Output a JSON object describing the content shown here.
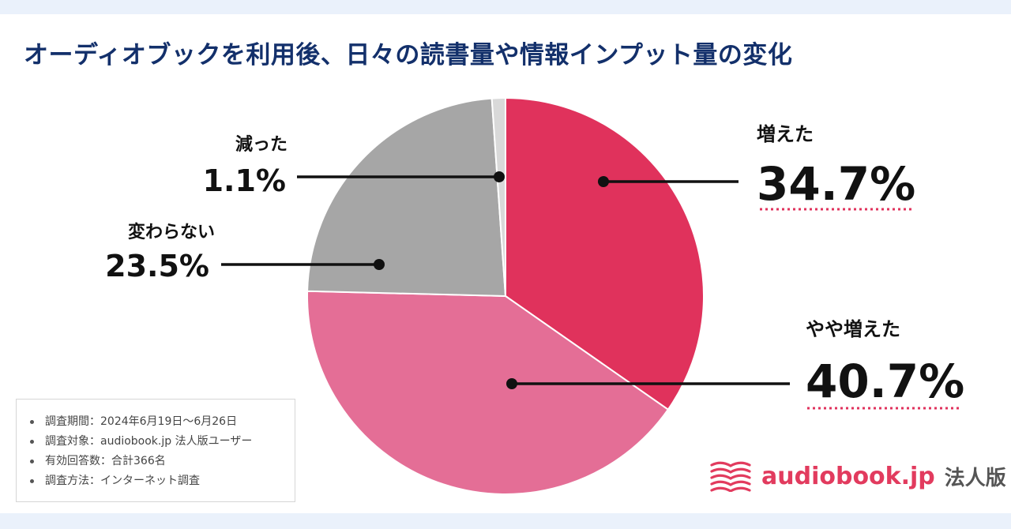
{
  "title": "オーディオブックを利用後、日々の読書量や情報インプット量の変化",
  "chart_data": {
    "type": "pie",
    "title": "オーディオブックを利用後、日々の読書量や情報インプット量の変化",
    "slices": [
      {
        "label": "増えた",
        "value": 34.7,
        "display": "34.7%",
        "color": "#e0325c"
      },
      {
        "label": "やや増えた",
        "value": 40.7,
        "display": "40.7%",
        "color": "#e46e96"
      },
      {
        "label": "変わらない",
        "value": 23.5,
        "display": "23.5%",
        "color": "#a6a6a6"
      },
      {
        "label": "減った",
        "value": 1.1,
        "display": "1.1%",
        "color": "#d9d9d9"
      }
    ]
  },
  "notes": [
    "調査期間：2024年6月19日〜6月26日",
    "調査対象：audiobook.jp 法人版ユーザー",
    "有効回答数：合計366名",
    "調査方法：インターネット調査"
  ],
  "logo": {
    "text": "audiobook.jp",
    "sub": "法人版",
    "icon": "open-book-icon",
    "color": "#e23b5e"
  }
}
